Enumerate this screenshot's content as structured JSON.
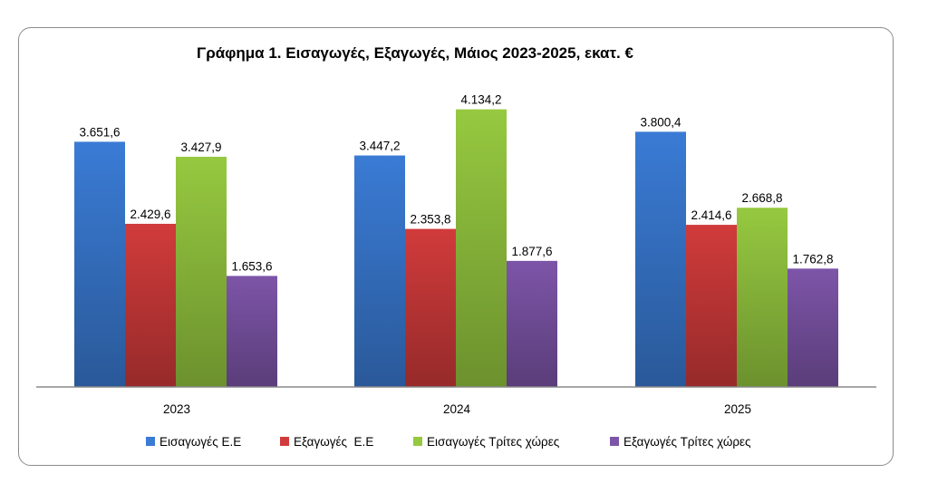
{
  "chart_data": {
    "type": "bar",
    "title": "Γράφημα 1. Εισαγωγές, Εξαγωγές, Μάιος 2023-2025, εκατ. €",
    "categories": [
      "2023",
      "2024",
      "2025"
    ],
    "series": [
      {
        "name": "Εισαγωγές Ε.Ε",
        "color": "#3a7bd5",
        "values": [
          3651.6,
          3447.2,
          3800.4
        ],
        "labels": [
          "3.651,6",
          "3.447,2",
          "3.800,4"
        ]
      },
      {
        "name": "Εξαγωγές  Ε.Ε",
        "color": "#d13b3b",
        "values": [
          2429.6,
          2353.8,
          2414.6
        ],
        "labels": [
          "2.429,6",
          "2.353,8",
          "2.414,6"
        ]
      },
      {
        "name": "Εισαγωγές Τρίτες χώρες",
        "color": "#96c940",
        "values": [
          3427.9,
          4134.2,
          2668.8
        ],
        "labels": [
          "3.427,9",
          "4.134,2",
          "2.668,8"
        ]
      },
      {
        "name": "Εξαγωγές Τρίτες χώρες",
        "color": "#7d55a8",
        "values": [
          1653.6,
          1877.6,
          1762.8
        ],
        "labels": [
          "1.653,6",
          "1.877,6",
          "1.762,8"
        ]
      }
    ],
    "ylim": [
      0,
      4500
    ],
    "grid": false,
    "legend_position": "bottom"
  }
}
